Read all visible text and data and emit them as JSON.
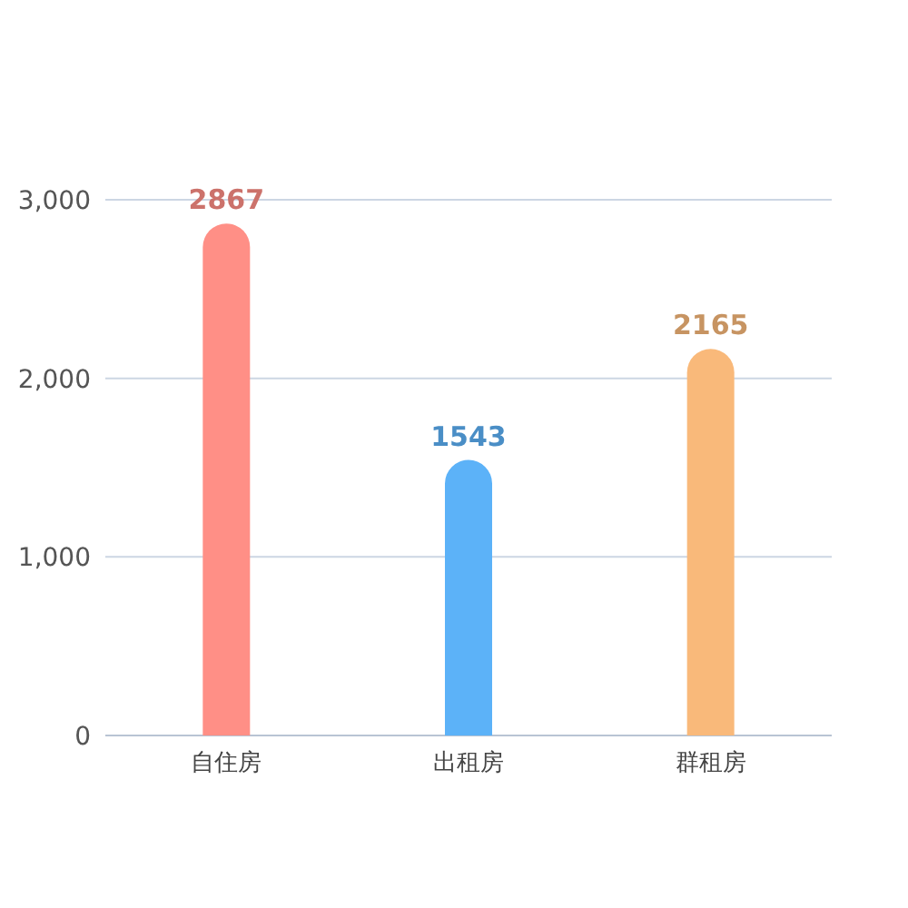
{
  "chart_data": {
    "type": "bar",
    "categories": [
      "自住房",
      "出租房",
      "群租房"
    ],
    "values": [
      2867,
      1543,
      2165
    ],
    "colors": [
      "#ff8f86",
      "#5cb2f8",
      "#f9b97a"
    ],
    "ylim": [
      0,
      3000
    ],
    "yticks": [
      {
        "value": 0,
        "label": "0"
      },
      {
        "value": 1000,
        "label": "1,000"
      },
      {
        "value": 2000,
        "label": "2,000"
      },
      {
        "value": 3000,
        "label": "3,000"
      }
    ],
    "grid": "y",
    "data_labels": true
  }
}
